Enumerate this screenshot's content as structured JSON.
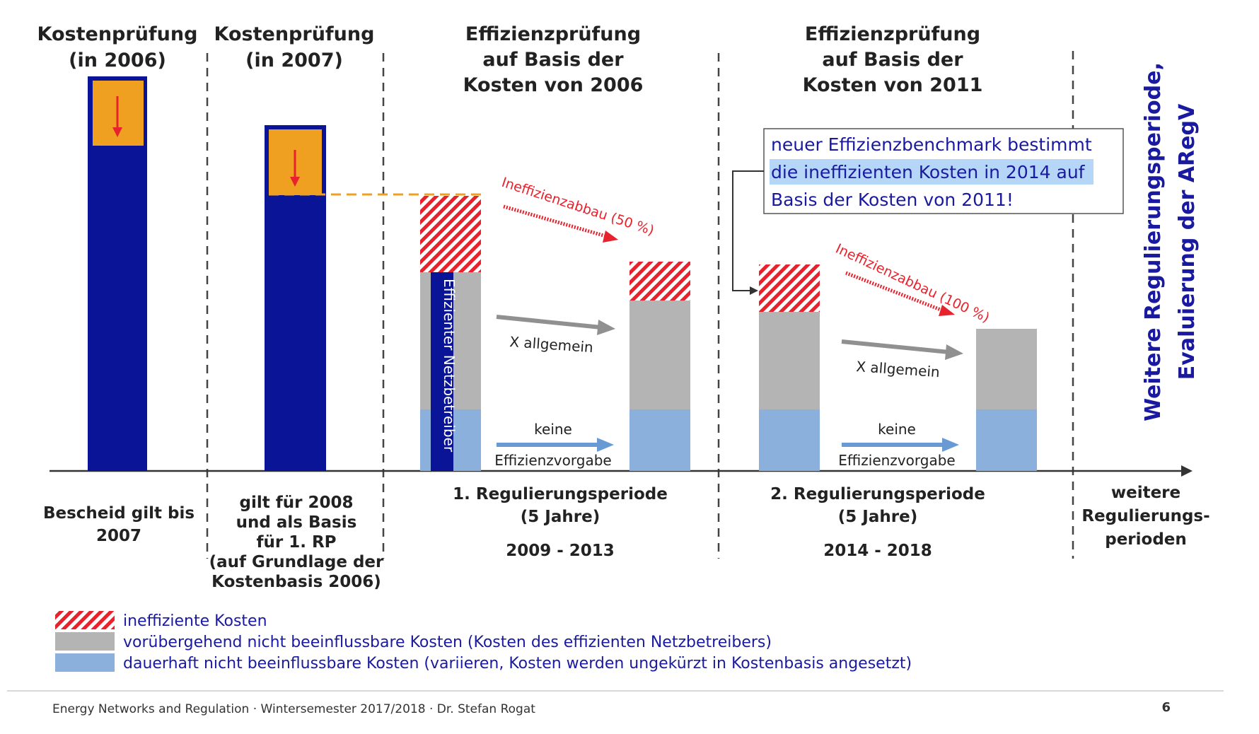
{
  "headers": {
    "col1": [
      "Kostenprüfung",
      "(in 2006)"
    ],
    "col2": [
      "Kostenprüfung",
      "(in 2007)"
    ],
    "col3": [
      "Effizienzprüfung",
      "auf Basis der",
      "Kosten von 2006"
    ],
    "col4": [
      "Effizienzprüfung",
      "auf Basis der",
      "Kosten von 2011"
    ]
  },
  "bottom": {
    "col1": [
      "Bescheid gilt bis",
      "2007"
    ],
    "col2": [
      "gilt für 2008",
      "und als Basis",
      "für 1. RP",
      "(auf Grundlage der",
      "Kostenbasis 2006)"
    ],
    "col3": [
      "1. Regulierungsperiode",
      "(5 Jahre)",
      "2009 - 2013"
    ],
    "col4": [
      "2. Regulierungsperiode",
      "(5 Jahre)",
      "2014 - 2018"
    ],
    "col5": [
      "weitere",
      "Regulierungs-",
      "perioden"
    ]
  },
  "vertical_bar_label": "Effizienter Netzbetreiber",
  "arrows": {
    "ineff1": "Ineffizienzabbau (50 %)",
    "ineff2": "Ineffizienzabbau (100 %)",
    "xallg1": "X allgemein",
    "xallg2": "X allgemein",
    "keine1": [
      "keine",
      "Effizienzvorgabe"
    ],
    "keine2": [
      "keine",
      "Effizienzvorgabe"
    ]
  },
  "callout": [
    "neuer Effizienzbenchmark bestimmt",
    "die ineffizienten Kosten in 2014 auf",
    "Basis der Kosten von 2011!"
  ],
  "side_title": [
    "Weitere Regulierungsperiode,",
    "Evaluierung der ARegV"
  ],
  "legend": [
    {
      "label": "ineffiziente Kosten",
      "kind": "hatched"
    },
    {
      "label": "vorübergehend nicht beeinflussbare Kosten (Kosten des effizienten Netzbetreibers)",
      "kind": "gray"
    },
    {
      "label": "dauerhaft nicht beeinflussbare Kosten (variieren, Kosten werden ungekürzt in Kostenbasis angesetzt)",
      "kind": "lightblue"
    }
  ],
  "footer": {
    "left": "Energy Networks and Regulation  ·  Wintersemester 2017/2018  ·  Dr. Stefan Rogat",
    "page": "6"
  },
  "colors": {
    "dark_blue": "#0a1496",
    "orange": "#f0a020",
    "gray": "#b4b4b4",
    "light_blue": "#8cb0dc",
    "red": "#e8222c",
    "side_title": "#1a1aa0"
  }
}
